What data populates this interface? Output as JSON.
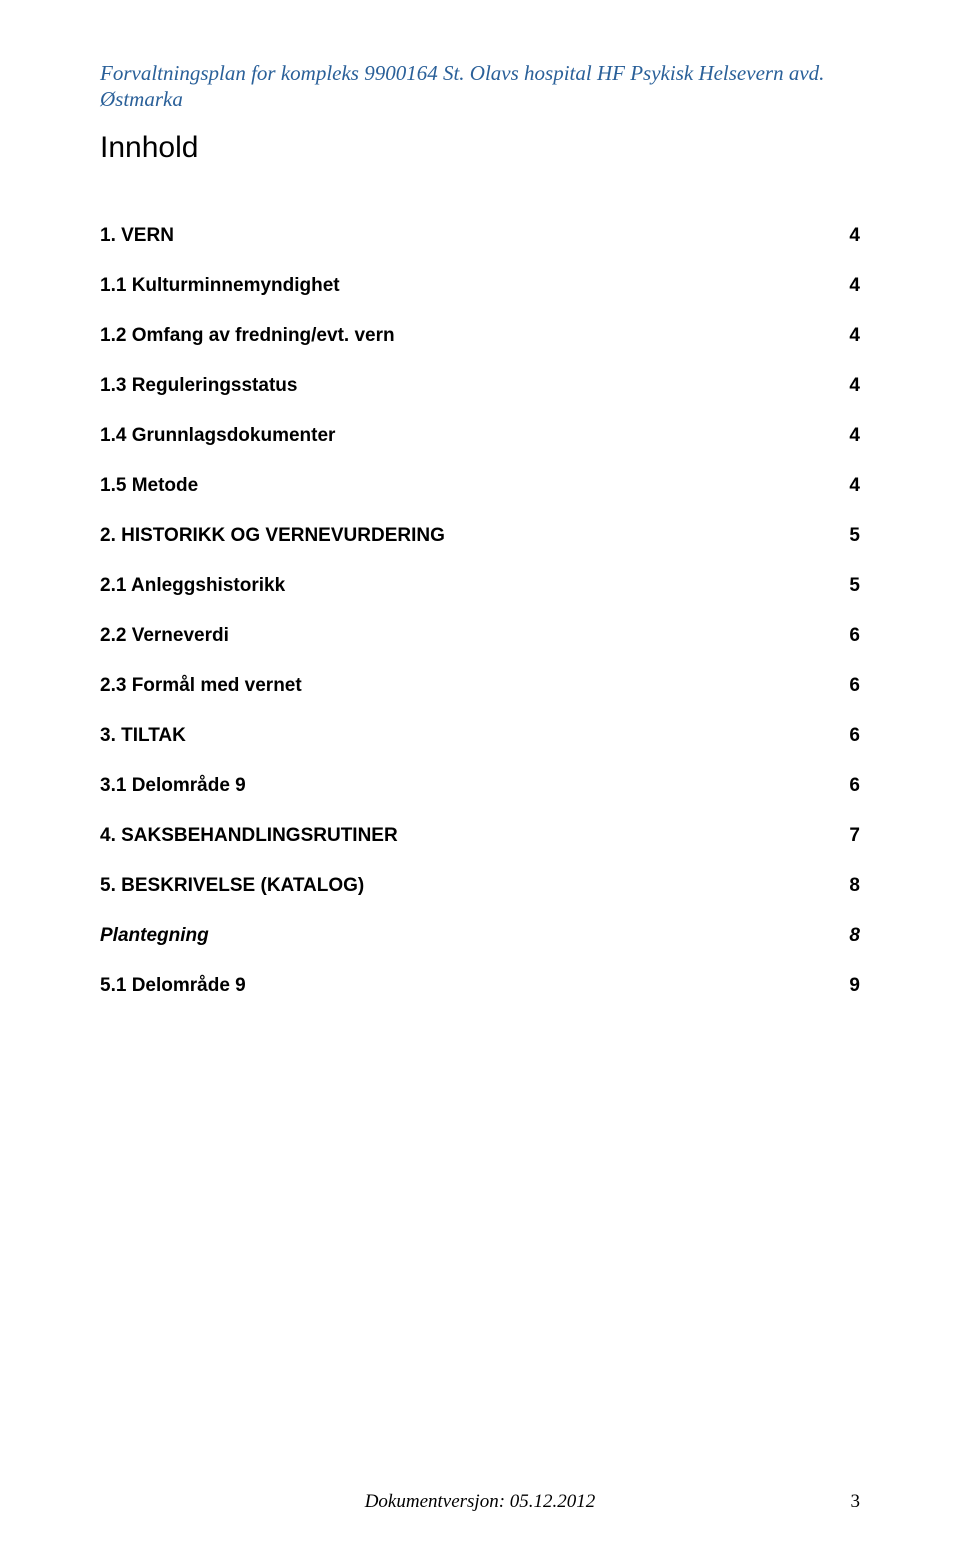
{
  "header": {
    "line1": "Forvaltningsplan for kompleks 9900164 St. Olavs hospital HF Psykisk Helsevern avd.",
    "line2": "Østmarka"
  },
  "title": "Innhold",
  "toc": [
    {
      "level": 1,
      "label": "1. VERN",
      "page": "4"
    },
    {
      "level": 2,
      "label": "1.1 Kulturminnemyndighet",
      "page": "4"
    },
    {
      "level": 2,
      "label": "1.2 Omfang av fredning/evt. vern",
      "page": "4"
    },
    {
      "level": 2,
      "label": "1.3 Reguleringsstatus",
      "page": "4"
    },
    {
      "level": 2,
      "label": "1.4 Grunnlagsdokumenter",
      "page": "4"
    },
    {
      "level": 2,
      "label": "1.5 Metode",
      "page": "4"
    },
    {
      "level": 1,
      "label": "2. HISTORIKK OG VERNEVURDERING",
      "page": "5"
    },
    {
      "level": 2,
      "label": "2.1 Anleggshistorikk",
      "page": "5"
    },
    {
      "level": 2,
      "label": "2.2 Verneverdi",
      "page": "6"
    },
    {
      "level": 2,
      "label": "2.3 Formål med vernet",
      "page": "6"
    },
    {
      "level": 1,
      "label": "3. TILTAK",
      "page": "6"
    },
    {
      "level": 2,
      "label": "3.1 Delområde 9",
      "page": "6"
    },
    {
      "level": 1,
      "label": "4. SAKSBEHANDLINGSRUTINER",
      "page": "7"
    },
    {
      "level": 1,
      "label": "5. BESKRIVELSE (KATALOG)",
      "page": "8"
    },
    {
      "level": 2,
      "italic": true,
      "label": "Plantegning",
      "page": "8"
    },
    {
      "level": 2,
      "label": "5.1 Delområde 9",
      "page": "9"
    }
  ],
  "footer": {
    "version": "Dokumentversjon: 05.12.2012",
    "page_number": "3"
  },
  "colors": {
    "header_color": "#2a6099",
    "text_color": "#000000",
    "background": "#ffffff"
  },
  "fonts": {
    "header_family": "Times New Roman",
    "body_family": "Arial",
    "header_size_pt": 16,
    "title_size_pt": 22,
    "toc_size_pt": 14
  }
}
